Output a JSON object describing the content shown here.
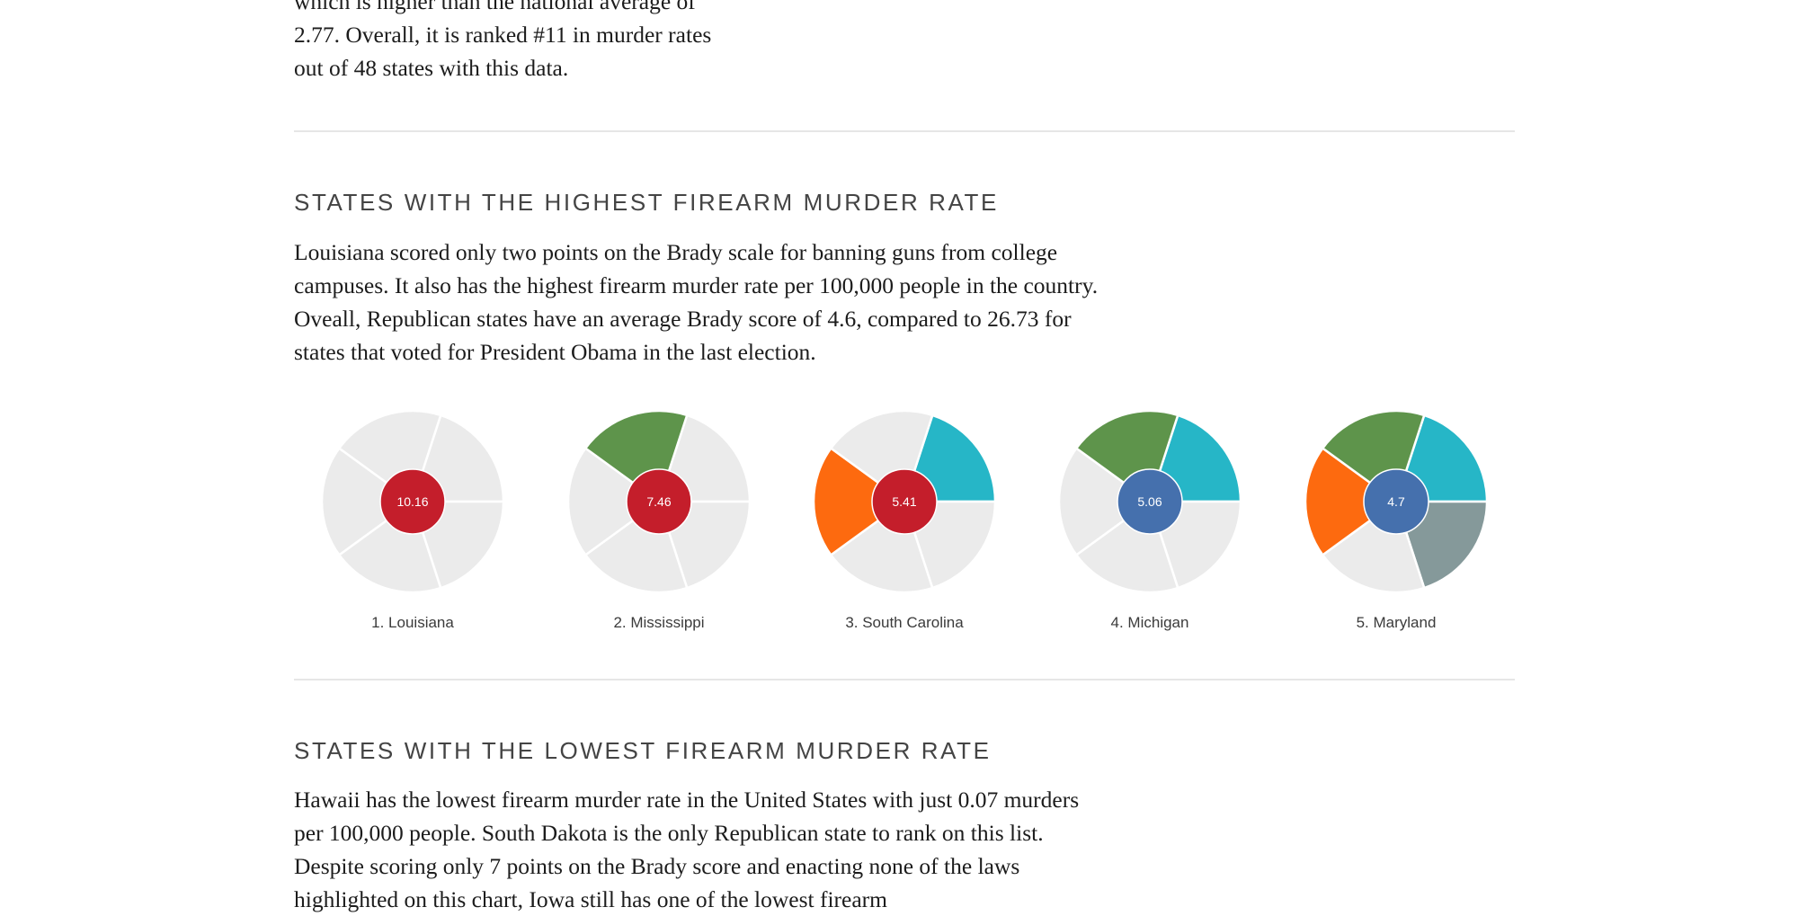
{
  "intro": {
    "text": "which is higher than the national average of 2.77. Overall, it is ranked #11 in murder rates out of 48 states with this data."
  },
  "highest": {
    "heading": "STATES WITH THE HIGHEST FIREARM MURDER RATE",
    "text": "Louisiana scored only two points on the Brady scale for banning guns from college campuses. It also has the highest firearm murder rate per 100,000 people in the country. Oveall, Republican states have an average Brady score of 4.6, compared to 26.73 for states that voted for President Obama in the last election."
  },
  "lowest": {
    "heading": "STATES WITH THE LOWEST FIREARM MURDER RATE",
    "text": "Hawaii has the lowest firearm murder rate in the United States with just 0.07 murders per 100,000 people. South Dakota is the only Republican state to rank on this list. Despite scoring only 7 points on the Brady score and enacting none of the laws highlighted on this chart, Iowa still has one of the lowest firearm"
  },
  "colors": {
    "inactive": "#ebebeb",
    "teal": "#26b6c7",
    "green": "#5e944b",
    "orange": "#fd6a0f",
    "gray": "#85999a",
    "red_party": "#c41e2b",
    "blue_party": "#4570ad"
  },
  "chart_data": {
    "type": "pie",
    "segment_order": [
      "teal",
      "gray",
      "inactive",
      "orange",
      "green"
    ],
    "charts": [
      {
        "label": "1. Louisiana",
        "value": "10.16",
        "party": "red_party",
        "segments": [
          "inactive",
          "inactive",
          "inactive",
          "inactive",
          "inactive"
        ]
      },
      {
        "label": "2. Mississippi",
        "value": "7.46",
        "party": "red_party",
        "segments": [
          "inactive",
          "inactive",
          "inactive",
          "inactive",
          "green"
        ]
      },
      {
        "label": "3. South Carolina",
        "value": "5.41",
        "party": "red_party",
        "segments": [
          "teal",
          "inactive",
          "inactive",
          "orange",
          "inactive"
        ]
      },
      {
        "label": "4. Michigan",
        "value": "5.06",
        "party": "blue_party",
        "segments": [
          "teal",
          "inactive",
          "inactive",
          "inactive",
          "green"
        ]
      },
      {
        "label": "5. Maryland",
        "value": "4.7",
        "party": "blue_party",
        "segments": [
          "teal",
          "gray",
          "inactive",
          "orange",
          "green"
        ]
      }
    ]
  }
}
